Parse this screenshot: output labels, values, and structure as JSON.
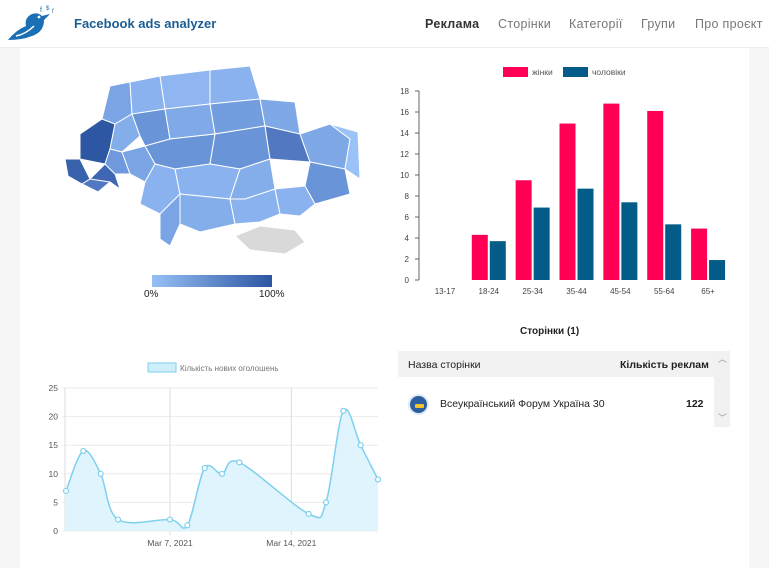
{
  "header": {
    "brand": "Facebook ads analyzer",
    "nav": [
      {
        "label": "Реклама",
        "active": true
      },
      {
        "label": "Сторінки",
        "active": false
      },
      {
        "label": "Категорії",
        "active": false
      },
      {
        "label": "Групи",
        "active": false
      },
      {
        "label": "Про проєкт",
        "active": false
      }
    ]
  },
  "map": {
    "scale_min": "0%",
    "scale_max": "100%",
    "colors": {
      "low": "#96c0f4",
      "high": "#2d56a3",
      "no_data": "#d9d9d9"
    }
  },
  "pages_table": {
    "title": "Сторінки (1)",
    "col_name": "Назва сторінки",
    "col_count": "Кількість реклам",
    "rows": [
      {
        "name": "Всеукраїнський Форум Україна 30",
        "count": "122"
      }
    ]
  },
  "chart_data": [
    {
      "type": "bar",
      "categories": [
        "13-17",
        "18-24",
        "25-34",
        "35-44",
        "45-54",
        "55-64",
        "65+"
      ],
      "series": [
        {
          "name": "жінки",
          "color": "#ff0055",
          "values": [
            0,
            4.3,
            9.5,
            14.9,
            16.8,
            16.1,
            4.9
          ]
        },
        {
          "name": "чоловіки",
          "color": "#035c87",
          "values": [
            0,
            3.7,
            6.9,
            8.7,
            7.4,
            5.3,
            1.9
          ]
        }
      ],
      "yticks": [
        0,
        2,
        4,
        6,
        8,
        10,
        12,
        14,
        16,
        18
      ],
      "ylim": [
        0,
        18
      ],
      "legend": "top"
    },
    {
      "type": "area",
      "series": [
        {
          "name": "Кількість нових оголошень",
          "color": "#7fd0ef",
          "points": [
            {
              "x": "2021-03-01",
              "y": 7
            },
            {
              "x": "2021-03-02",
              "y": 14
            },
            {
              "x": "2021-03-03",
              "y": 10
            },
            {
              "x": "2021-03-04",
              "y": 2
            },
            {
              "x": "2021-03-07",
              "y": 2
            },
            {
              "x": "2021-03-08",
              "y": 1
            },
            {
              "x": "2021-03-09",
              "y": 11
            },
            {
              "x": "2021-03-10",
              "y": 10
            },
            {
              "x": "2021-03-11",
              "y": 12
            },
            {
              "x": "2021-03-15",
              "y": 3
            },
            {
              "x": "2021-03-16",
              "y": 5
            },
            {
              "x": "2021-03-17",
              "y": 21
            },
            {
              "x": "2021-03-18",
              "y": 15
            },
            {
              "x": "2021-03-19",
              "y": 9
            }
          ]
        }
      ],
      "xticks": [
        "Mar 7, 2021",
        "Mar 14, 2021"
      ],
      "yticks": [
        0,
        5,
        10,
        15,
        20,
        25
      ],
      "ylim": [
        0,
        25
      ],
      "legend": "top"
    }
  ]
}
